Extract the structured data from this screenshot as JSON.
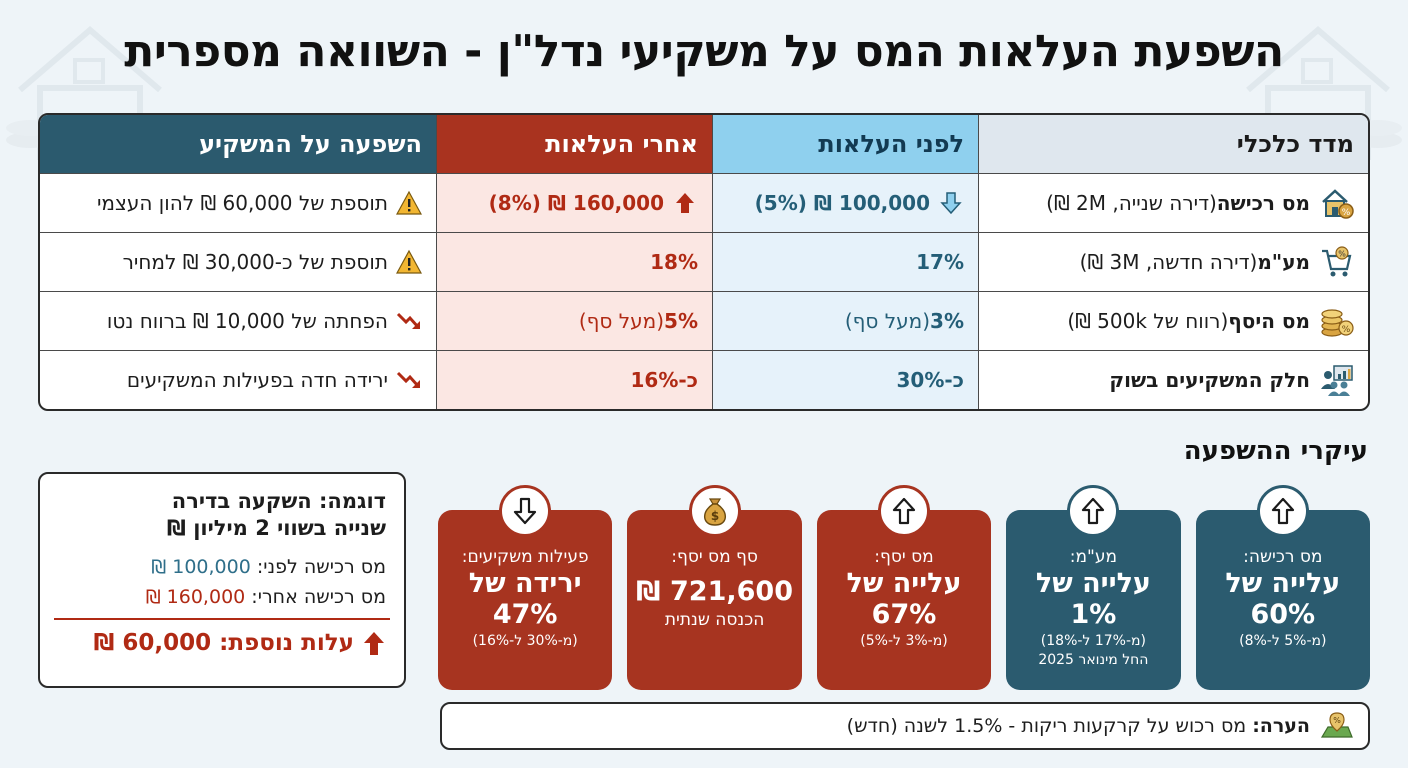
{
  "title": "השפעת העלאות המס על משקיעי נדל\"ן - השוואה מספרית",
  "table": {
    "headers": [
      "מדד כלכלי",
      "לפני העלאות",
      "אחרי העלאות",
      "השפעה על המשקיע"
    ],
    "rows": [
      {
        "icon": "house-percent-icon",
        "name": "מס רכישה",
        "detail": " (דירה שנייה, 2M ₪)",
        "before": "100,000 ₪ (5%)",
        "before_icon": "arrow-down-icon",
        "after": "160,000 ₪ (8%)",
        "after_icon": "arrow-up-icon",
        "impact_icon": "warning-icon",
        "impact": "תוספת של 60,000 ₪ להון העצמי"
      },
      {
        "icon": "cart-percent-icon",
        "name": "מע\"מ",
        "detail": " (דירה חדשה, 3M ₪)",
        "before": "17%",
        "after": "18%",
        "impact_icon": "warning-icon",
        "impact": "תוספת של כ-30,000 ₪ למחיר"
      },
      {
        "icon": "coins-percent-icon",
        "name": "מס היסף",
        "detail": " (רווח של 500k ₪)",
        "before_bold": "3%",
        "before_rest": " (מעל סף)",
        "after_bold": "5%",
        "after_rest": " (מעל סף)",
        "impact_icon": "trend-down-icon",
        "impact": "הפחתה של 10,000 ₪ ברווח נטו"
      },
      {
        "icon": "investors-icon",
        "name": "חלק המשקיעים בשוק",
        "detail": "",
        "before": "כ-30%",
        "after": "כ-16%",
        "impact_icon": "trend-down-icon",
        "impact": "ירידה חדה בפעילות המשקיעים"
      }
    ]
  },
  "section_title": "עיקרי ההשפעה",
  "cards": [
    {
      "color": "#2b5b6f",
      "badge": "arrow-up-icon",
      "label": "מס רכישה:",
      "big1": "עלייה של",
      "big2": "60%",
      "small1": "(מ-5% ל-8%)",
      "small2": ""
    },
    {
      "color": "#2b5b6f",
      "badge": "arrow-up-icon",
      "label": "מע\"מ:",
      "big1": "עלייה של",
      "big2": "1%",
      "small1": "(מ-17% ל-18%)",
      "small2": "החל מינואר 2025"
    },
    {
      "color": "#a73420",
      "badge": "arrow-up-icon",
      "label": "מס יסף:",
      "big1": "עלייה של",
      "big2": "67%",
      "small1": "(מ-3% ל-5%)",
      "small2": ""
    },
    {
      "color": "#a73420",
      "badge": "money-bag-icon",
      "label": "סף מס יסף:",
      "big1": "721,600 ₪",
      "big2": "",
      "small1": "הכנסה שנתית",
      "small2": ""
    },
    {
      "color": "#a73420",
      "badge": "arrow-down-icon",
      "label": "פעילות משקיעים:",
      "big1": "ירידה של",
      "big2": "47%",
      "small1": "(מ-30% ל-16%)",
      "small2": ""
    }
  ],
  "example": {
    "title1": "דוגמה: השקעה בדירה",
    "title2": "שנייה בשווי 2 מיליון ₪",
    "before_label": "מס רכישה לפני: ",
    "before_value": "100,000 ₪",
    "after_label": "מס רכישה אחרי: ",
    "after_value": "160,000 ₪",
    "total": "עלות נוספת: 60,000 ₪"
  },
  "note": {
    "label": "הערה:",
    "text": "מס רכוש על קרקעות ריקות - 1.5% לשנה (חדש)"
  },
  "colors": {
    "teal": "#2b5b6f",
    "red": "#a73420",
    "light_blue": "#8fd0ee",
    "light_red": "#fbe7e3"
  }
}
